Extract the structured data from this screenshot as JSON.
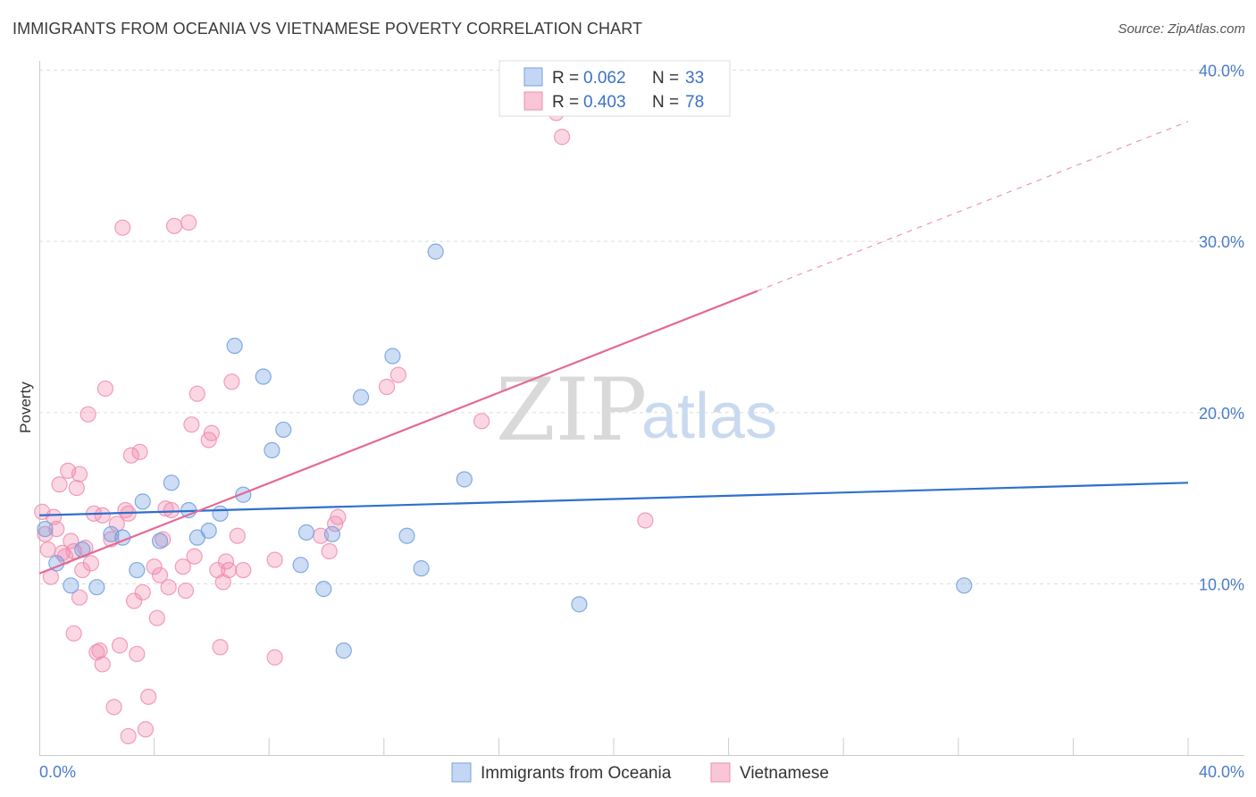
{
  "header": {
    "title": "IMMIGRANTS FROM OCEANIA VS VIETNAMESE POVERTY CORRELATION CHART",
    "source": "Source: ZipAtlas.com"
  },
  "watermark": {
    "zip": "ZIP",
    "atlas": "atlas"
  },
  "legend": {
    "rows": [
      {
        "r_label": "R = ",
        "r_value": "0.062",
        "n_label": "N = ",
        "n_value": "33"
      },
      {
        "r_label": "R = ",
        "r_value": "0.403",
        "n_label": "N = ",
        "n_value": "78"
      }
    ]
  },
  "bottom_legend": {
    "series1": "Immigrants from Oceania",
    "series2": "Vietnamese"
  },
  "chart_data": {
    "type": "scatter",
    "title": "IMMIGRANTS FROM OCEANIA VS VIETNAMESE POVERTY CORRELATION CHART",
    "xlabel": "",
    "ylabel": "Poverty",
    "xlim": [
      0,
      40
    ],
    "ylim": [
      0,
      40
    ],
    "x_tick_labels": [
      "0.0%",
      "40.0%"
    ],
    "y_ticks": [
      {
        "value": 10,
        "label": "10.0%"
      },
      {
        "value": 20,
        "label": "20.0%"
      },
      {
        "value": 30,
        "label": "30.0%"
      },
      {
        "value": 40,
        "label": "40.0%"
      }
    ],
    "colors": {
      "oceania": "#6f9de0",
      "vietnamese": "#f08db0",
      "oceania_line": "#2f6fce",
      "vietnamese_line": "#e36a95"
    },
    "series": [
      {
        "name": "Immigrants from Oceania",
        "R": 0.062,
        "N": 33,
        "trend": {
          "x0": 0,
          "y0": 14.0,
          "x1": 40,
          "y1": 15.9
        },
        "points": [
          [
            0.2,
            13.2
          ],
          [
            0.6,
            11.2
          ],
          [
            1.1,
            9.9
          ],
          [
            1.5,
            12.0
          ],
          [
            2.0,
            9.8
          ],
          [
            2.5,
            12.9
          ],
          [
            2.9,
            12.7
          ],
          [
            3.4,
            10.8
          ],
          [
            3.6,
            14.8
          ],
          [
            4.2,
            12.5
          ],
          [
            4.6,
            15.9
          ],
          [
            5.2,
            14.3
          ],
          [
            5.5,
            12.7
          ],
          [
            5.9,
            13.1
          ],
          [
            6.3,
            14.1
          ],
          [
            6.8,
            23.9
          ],
          [
            7.1,
            15.2
          ],
          [
            7.8,
            22.1
          ],
          [
            8.1,
            17.8
          ],
          [
            8.5,
            19.0
          ],
          [
            9.1,
            11.1
          ],
          [
            9.3,
            13.0
          ],
          [
            9.9,
            9.7
          ],
          [
            10.2,
            12.9
          ],
          [
            10.6,
            6.1
          ],
          [
            11.2,
            20.9
          ],
          [
            12.3,
            23.3
          ],
          [
            12.8,
            12.8
          ],
          [
            13.3,
            10.9
          ],
          [
            13.8,
            29.4
          ],
          [
            14.8,
            16.1
          ],
          [
            18.8,
            8.8
          ],
          [
            32.2,
            9.9
          ]
        ]
      },
      {
        "name": "Vietnamese",
        "R": 0.403,
        "N": 78,
        "trend": {
          "x0": 0,
          "y0": 10.6,
          "x1": 25,
          "y1": 27.1,
          "dash_x1": 40,
          "dash_y1": 37.0
        },
        "points": [
          [
            0.1,
            14.2
          ],
          [
            0.3,
            12.0
          ],
          [
            0.4,
            10.4
          ],
          [
            0.5,
            13.9
          ],
          [
            0.6,
            13.2
          ],
          [
            0.7,
            15.8
          ],
          [
            0.8,
            11.8
          ],
          [
            0.9,
            11.6
          ],
          [
            1.0,
            16.6
          ],
          [
            1.1,
            12.5
          ],
          [
            1.2,
            7.1
          ],
          [
            1.3,
            15.6
          ],
          [
            1.4,
            9.2
          ],
          [
            1.4,
            16.4
          ],
          [
            1.5,
            10.8
          ],
          [
            1.6,
            12.1
          ],
          [
            1.7,
            19.9
          ],
          [
            1.8,
            11.2
          ],
          [
            1.9,
            14.1
          ],
          [
            2.0,
            6.0
          ],
          [
            2.1,
            6.1
          ],
          [
            2.2,
            5.3
          ],
          [
            2.2,
            14.0
          ],
          [
            2.3,
            21.4
          ],
          [
            2.5,
            12.6
          ],
          [
            2.6,
            2.8
          ],
          [
            2.7,
            13.5
          ],
          [
            2.8,
            6.4
          ],
          [
            2.9,
            30.8
          ],
          [
            3.0,
            14.3
          ],
          [
            3.1,
            1.1
          ],
          [
            3.2,
            17.5
          ],
          [
            3.3,
            9.0
          ],
          [
            3.4,
            5.9
          ],
          [
            3.5,
            17.7
          ],
          [
            3.6,
            9.5
          ],
          [
            3.7,
            1.5
          ],
          [
            3.8,
            3.4
          ],
          [
            4.0,
            11.0
          ],
          [
            4.1,
            8.0
          ],
          [
            4.2,
            10.5
          ],
          [
            4.3,
            12.6
          ],
          [
            4.4,
            14.4
          ],
          [
            4.5,
            9.8
          ],
          [
            4.6,
            14.3
          ],
          [
            4.7,
            30.9
          ],
          [
            5.0,
            11.0
          ],
          [
            5.1,
            9.6
          ],
          [
            5.2,
            31.1
          ],
          [
            5.3,
            19.3
          ],
          [
            5.4,
            11.6
          ],
          [
            5.5,
            21.1
          ],
          [
            5.9,
            18.4
          ],
          [
            6.0,
            18.8
          ],
          [
            6.2,
            10.8
          ],
          [
            6.3,
            6.3
          ],
          [
            6.4,
            10.1
          ],
          [
            6.5,
            11.3
          ],
          [
            6.6,
            10.8
          ],
          [
            6.7,
            21.8
          ],
          [
            6.9,
            12.8
          ],
          [
            7.1,
            10.8
          ],
          [
            8.2,
            11.4
          ],
          [
            8.2,
            5.7
          ],
          [
            9.8,
            12.8
          ],
          [
            10.1,
            11.9
          ],
          [
            10.3,
            13.5
          ],
          [
            10.4,
            13.9
          ],
          [
            12.1,
            21.5
          ],
          [
            12.5,
            22.2
          ],
          [
            15.4,
            19.5
          ],
          [
            17.8,
            37.8
          ],
          [
            18.0,
            37.5
          ],
          [
            18.2,
            36.1
          ],
          [
            21.1,
            13.7
          ],
          [
            0.2,
            12.9
          ],
          [
            1.2,
            11.9
          ],
          [
            3.1,
            14.1
          ]
        ]
      }
    ]
  }
}
